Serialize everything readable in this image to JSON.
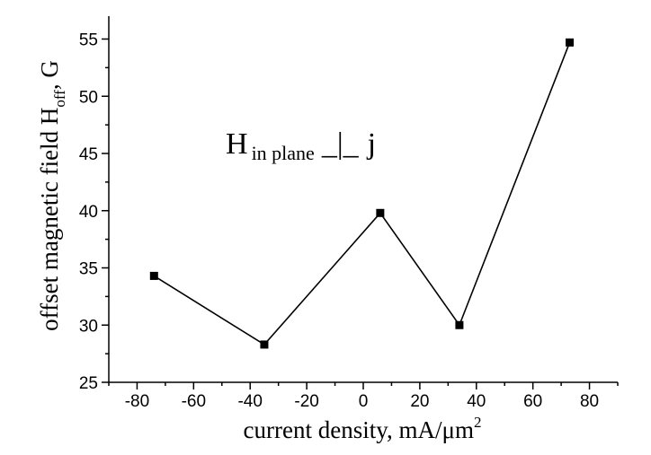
{
  "chart_data": {
    "type": "line",
    "xlabel": "current density, mA/μm",
    "xlabel_sup": "2",
    "ylabel": "offset magnetic field H",
    "ylabel_sub": "off",
    "ylabel_suffix": ", G",
    "annotation": {
      "main": "H",
      "sub": "in plane",
      "symbol": "_|_",
      "tail": "j"
    },
    "x": [
      -74,
      -35,
      6,
      34,
      73
    ],
    "y": [
      34.3,
      28.3,
      39.8,
      30.0,
      54.7
    ],
    "xlim": [
      -90,
      90
    ],
    "ylim": [
      25,
      57
    ],
    "xticks": [
      -80,
      -60,
      -40,
      -20,
      0,
      20,
      40,
      60,
      80
    ],
    "yticks": [
      25,
      30,
      35,
      40,
      45,
      50,
      55
    ],
    "grid": false,
    "marker": "square",
    "line_color": "#000000"
  }
}
